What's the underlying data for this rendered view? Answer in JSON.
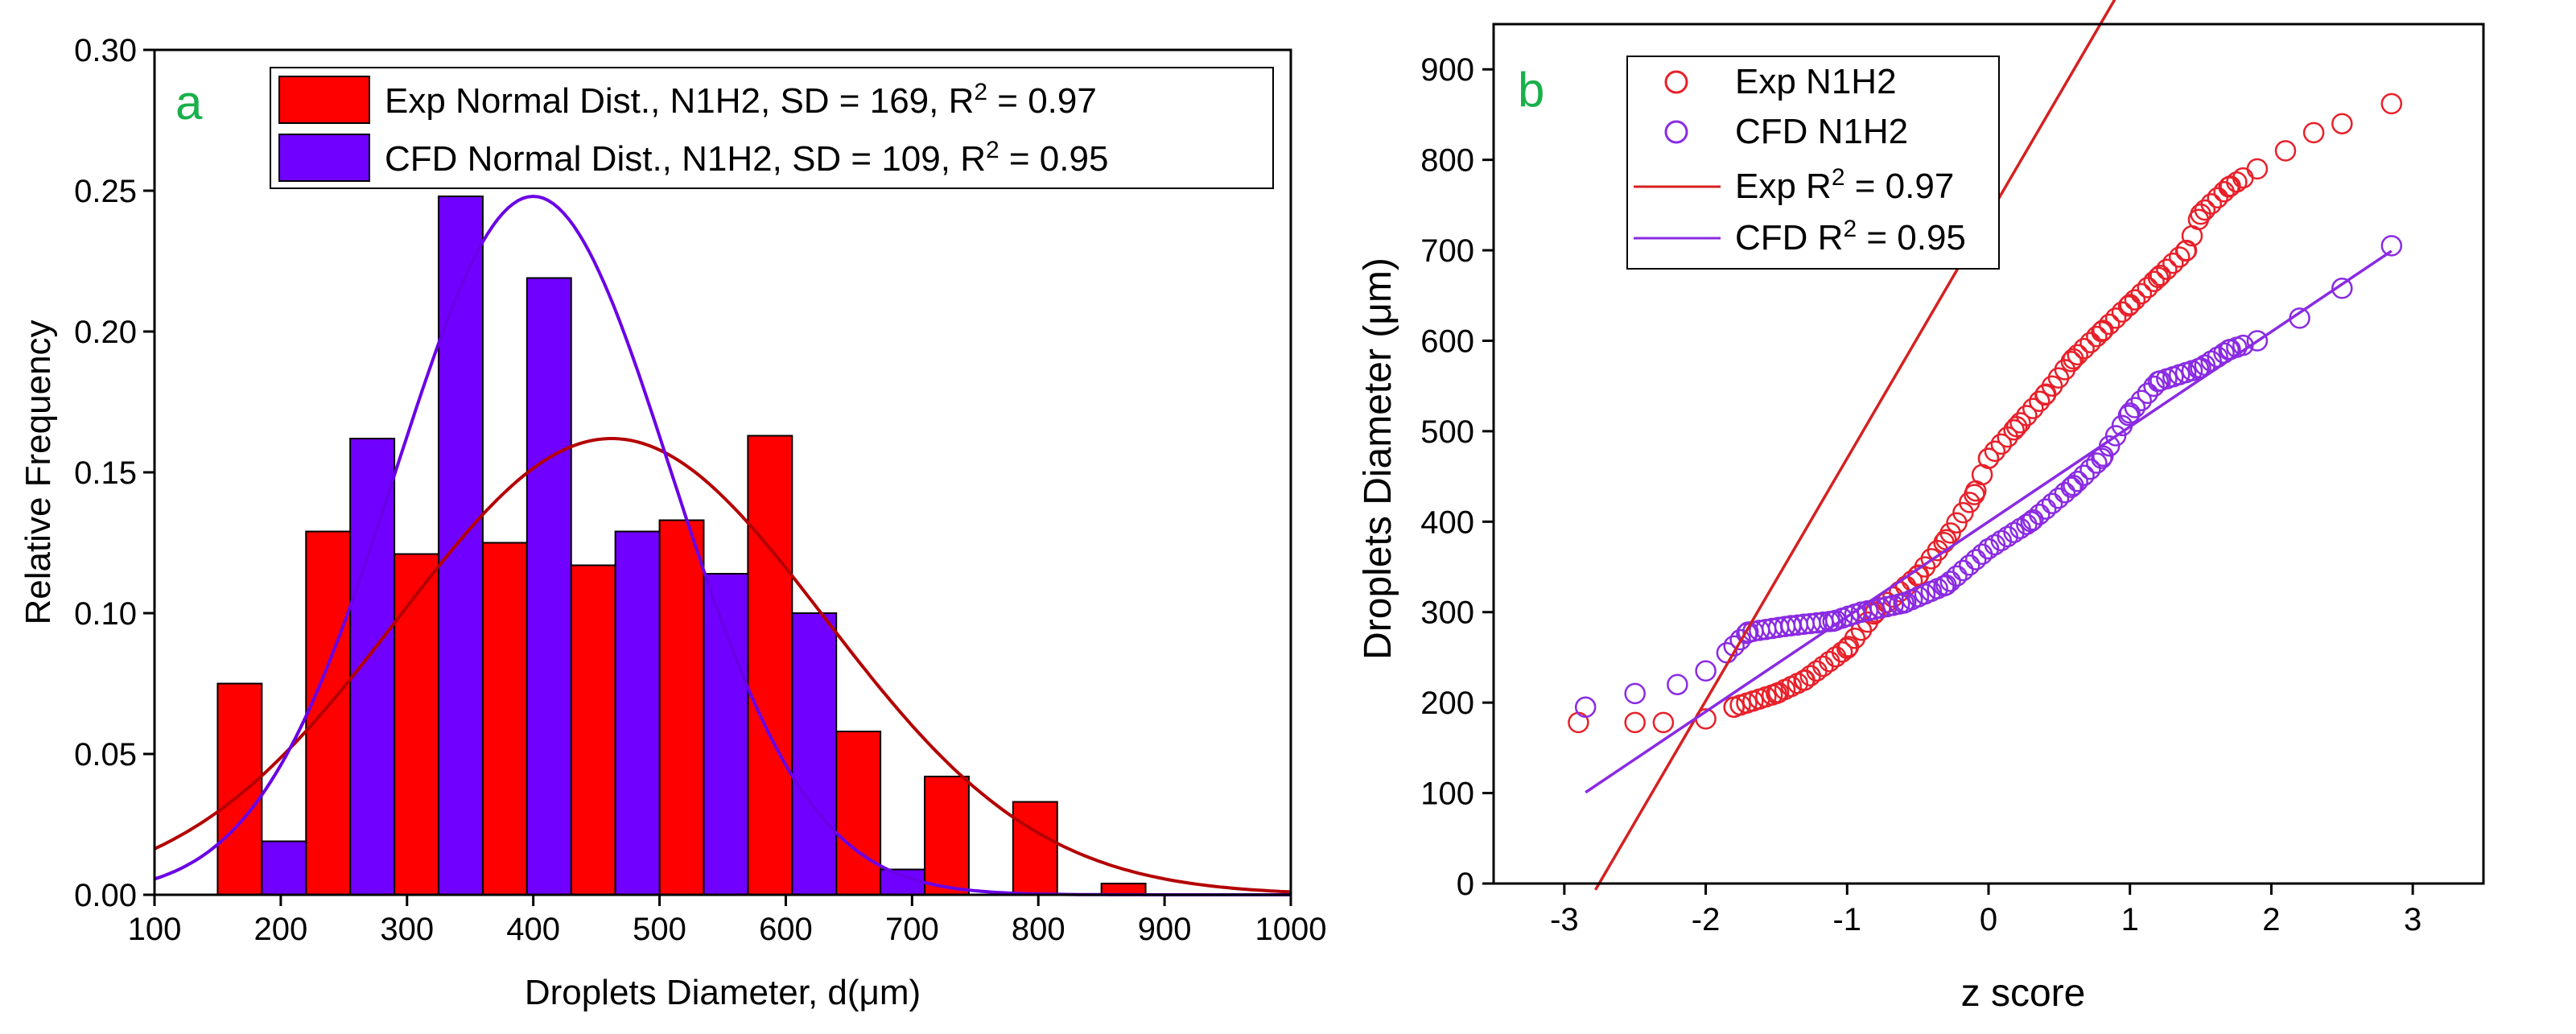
{
  "chart_data": [
    {
      "panel": "a",
      "type": "bar",
      "panel_label": "a",
      "xlabel": "Droplets Diameter, d(μm)",
      "ylabel": "Relative Frequency",
      "xlim": [
        100,
        1000
      ],
      "ylim": [
        0,
        0.3
      ],
      "xticks": [
        "100",
        "200",
        "300",
        "400",
        "500",
        "600",
        "700",
        "800",
        "900",
        "1000"
      ],
      "yticks": [
        "0.00",
        "0.05",
        "0.10",
        "0.15",
        "0.20",
        "0.25",
        "0.30"
      ],
      "legend": {
        "position": "top-right",
        "entries": [
          {
            "series": "Exp",
            "prefix": "Exp Normal Dist., N1H2, SD = 169, R",
            "sup": "2",
            "suffix": " = 0.97"
          },
          {
            "series": "CFD",
            "prefix": "CFD Normal Dist., N1H2, SD = 109, R",
            "sup": "2",
            "suffix": " = 0.95"
          }
        ]
      },
      "series": [
        {
          "name": "Exp Normal Dist., N1H2",
          "color": "#ff0000",
          "bins": [
            {
              "x0": 150,
              "x1": 185,
              "value": 0.075
            },
            {
              "x0": 220,
              "x1": 255,
              "value": 0.129
            },
            {
              "x0": 290,
              "x1": 325,
              "value": 0.121
            },
            {
              "x0": 360,
              "x1": 395,
              "value": 0.125
            },
            {
              "x0": 430,
              "x1": 465,
              "value": 0.117
            },
            {
              "x0": 500,
              "x1": 535,
              "value": 0.133
            },
            {
              "x0": 570,
              "x1": 605,
              "value": 0.163
            },
            {
              "x0": 640,
              "x1": 675,
              "value": 0.058
            },
            {
              "x0": 710,
              "x1": 745,
              "value": 0.042
            },
            {
              "x0": 780,
              "x1": 815,
              "value": 0.033
            },
            {
              "x0": 850,
              "x1": 885,
              "value": 0.004
            }
          ]
        },
        {
          "name": "CFD Normal Dist., N1H2",
          "color": "#7000ff",
          "bins": [
            {
              "x0": 185,
              "x1": 220,
              "value": 0.019
            },
            {
              "x0": 255,
              "x1": 290,
              "value": 0.162
            },
            {
              "x0": 325,
              "x1": 360,
              "value": 0.248
            },
            {
              "x0": 395,
              "x1": 430,
              "value": 0.219
            },
            {
              "x0": 465,
              "x1": 500,
              "value": 0.129
            },
            {
              "x0": 535,
              "x1": 570,
              "value": 0.114
            },
            {
              "x0": 605,
              "x1": 640,
              "value": 0.1
            },
            {
              "x0": 675,
              "x1": 710,
              "value": 0.009
            }
          ]
        }
      ],
      "fits": [
        {
          "name": "Exp normal fit",
          "color": "#b40000",
          "mean": 462,
          "peak": 0.162,
          "sigma": 169
        },
        {
          "name": "CFD normal fit",
          "color": "#6a00e6",
          "mean": 400,
          "peak": 0.248,
          "sigma": 109
        }
      ]
    },
    {
      "panel": "b",
      "type": "scatter",
      "panel_label": "b",
      "xlabel": "z score",
      "ylabel": "Droplets Diameter (μm)",
      "xlim": [
        -3.5,
        3.5
      ],
      "ylim": [
        0,
        950
      ],
      "xticks": [
        "-3",
        "-2",
        "-1",
        "0",
        "1",
        "2",
        "3"
      ],
      "yticks": [
        "0",
        "100",
        "200",
        "300",
        "400",
        "500",
        "600",
        "700",
        "800",
        "900"
      ],
      "legend": {
        "position": "top-left",
        "entries": [
          {
            "series": "Exp points",
            "prefix": "Exp N1H2",
            "sup": "",
            "suffix": ""
          },
          {
            "series": "CFD points",
            "prefix": "CFD N1H2",
            "sup": "",
            "suffix": ""
          },
          {
            "series": "Exp line",
            "prefix": "Exp R",
            "sup": "2",
            "suffix": " = 0.97"
          },
          {
            "series": "CFD line",
            "prefix": "CFD R",
            "sup": "2",
            "suffix": " = 0.95"
          }
        ]
      },
      "series": [
        {
          "name": "Exp N1H2",
          "color": "#e8202a",
          "anchors": [
            [
              -2.9,
              178
            ],
            [
              -2.5,
              178
            ],
            [
              -2.3,
              178
            ],
            [
              -2.0,
              182
            ],
            [
              -1.8,
              195
            ],
            [
              -1.5,
              210
            ],
            [
              -1.3,
              225
            ],
            [
              -1.0,
              260
            ],
            [
              -0.8,
              300
            ],
            [
              -0.5,
              340
            ],
            [
              -0.3,
              380
            ],
            [
              -0.1,
              430
            ],
            [
              0.0,
              470
            ],
            [
              0.2,
              505
            ],
            [
              0.4,
              540
            ],
            [
              0.6,
              580
            ],
            [
              0.8,
              610
            ],
            [
              1.0,
              640
            ],
            [
              1.2,
              670
            ],
            [
              1.4,
              700
            ],
            [
              1.5,
              740
            ],
            [
              1.7,
              770
            ],
            [
              1.9,
              790
            ],
            [
              2.1,
              810
            ],
            [
              2.3,
              830
            ],
            [
              2.5,
              840
            ],
            [
              2.85,
              862
            ]
          ]
        },
        {
          "name": "CFD N1H2",
          "color": "#8a2be2",
          "anchors": [
            [
              -2.85,
              195
            ],
            [
              -2.5,
              210
            ],
            [
              -2.2,
              220
            ],
            [
              -2.0,
              235
            ],
            [
              -1.85,
              255
            ],
            [
              -1.7,
              278
            ],
            [
              -1.4,
              285
            ],
            [
              -1.1,
              290
            ],
            [
              -0.9,
              300
            ],
            [
              -0.6,
              310
            ],
            [
              -0.3,
              330
            ],
            [
              0.0,
              370
            ],
            [
              0.3,
              400
            ],
            [
              0.6,
              440
            ],
            [
              0.8,
              470
            ],
            [
              1.0,
              520
            ],
            [
              1.2,
              555
            ],
            [
              1.5,
              570
            ],
            [
              1.7,
              590
            ],
            [
              1.9,
              600
            ],
            [
              2.2,
              625
            ],
            [
              2.5,
              658
            ],
            [
              2.85,
              705
            ]
          ]
        }
      ],
      "fits": [
        {
          "name": "Exp R2 = 0.97",
          "color": "#d62020",
          "slope": 268,
          "intercept": 738,
          "x_from": -2.78,
          "x_to": 2.93
        },
        {
          "name": "CFD R2 = 0.95",
          "color": "#8a2be2",
          "slope": 105,
          "intercept": 400,
          "x_from": -2.85,
          "x_to": 2.85
        }
      ]
    }
  ]
}
